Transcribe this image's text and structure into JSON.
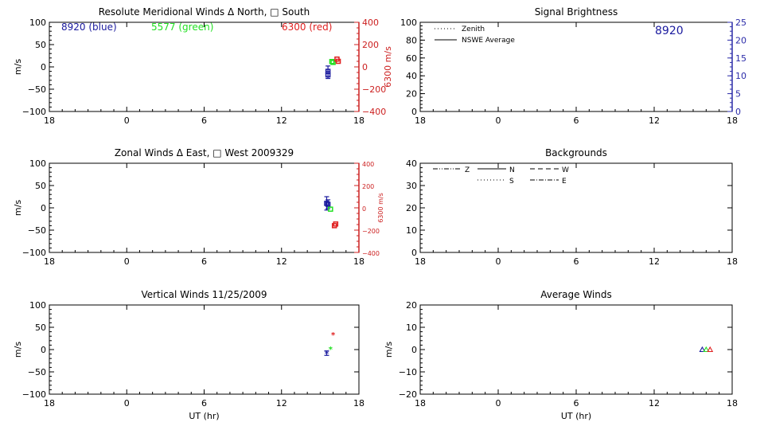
{
  "chart_data": [
    {
      "type": "scatter",
      "title": "Resolute Meridional Winds Δ North, □ South",
      "xlabel": "",
      "ylabel": "m/s",
      "y2label": "6300 m/s",
      "xlim": [
        18,
        42
      ],
      "xticks": [
        18,
        24,
        30,
        36,
        42
      ],
      "xtick_labels": [
        "18",
        "0",
        "6",
        "12",
        "18"
      ],
      "ylim": [
        -100,
        100
      ],
      "yticks": [
        -100,
        -50,
        0,
        50,
        100
      ],
      "ytick_labels": [
        "−100",
        "−50",
        "0",
        "50",
        "100"
      ],
      "y2lim": [
        -400,
        400
      ],
      "y2ticks": [
        -400,
        -200,
        0,
        200,
        400
      ],
      "y2tick_labels": [
        "−400",
        "−200",
        "0",
        "200",
        "400"
      ],
      "labels": [
        {
          "text": "8920 (blue)",
          "color": "#1a1a9e"
        },
        {
          "text": "5577 (green)",
          "color": "#22e022"
        },
        {
          "text": "6300 (red)",
          "color": "#e02020"
        }
      ],
      "series": [
        {
          "name": "8920",
          "color": "#1a1a9e",
          "axis": "left",
          "marker": "square",
          "x": [
            39.6,
            39.6
          ],
          "y": [
            -10,
            -18
          ],
          "err": [
            12,
            8
          ]
        },
        {
          "name": "5577",
          "color": "#22e022",
          "axis": "left",
          "marker": "square",
          "x": [
            39.9,
            40.0
          ],
          "y": [
            12,
            10
          ],
          "err": [
            0,
            0
          ]
        },
        {
          "name": "6300",
          "color": "#e02020",
          "axis": "right",
          "marker": "square",
          "x": [
            40.3,
            40.4
          ],
          "y": [
            70,
            50
          ],
          "err": [
            0,
            0
          ]
        }
      ]
    },
    {
      "type": "line",
      "title": "Signal Brightness",
      "xlim": [
        18,
        42
      ],
      "xticks": [
        18,
        24,
        30,
        36,
        42
      ],
      "xtick_labels": [
        "18",
        "0",
        "6",
        "12",
        "18"
      ],
      "ylim": [
        0,
        100
      ],
      "yticks": [
        0,
        20,
        40,
        60,
        80,
        100
      ],
      "ytick_labels": [
        "0",
        "20",
        "40",
        "60",
        "80",
        "100"
      ],
      "y2lim": [
        0,
        25
      ],
      "y2ticks": [
        0,
        5,
        10,
        15,
        20,
        25
      ],
      "y2tick_labels": [
        "0",
        "5",
        "10",
        "15",
        "20",
        "25"
      ],
      "legend": [
        {
          "label": "Zenith",
          "dash": "1,3"
        },
        {
          "label": "NSWE Average",
          "dash": ""
        }
      ],
      "annotation": {
        "text": "8920",
        "color": "#1a1a9e"
      },
      "series": []
    },
    {
      "type": "scatter",
      "title": "Zonal Winds Δ East, □ West 2009329",
      "ylabel": "m/s",
      "y2label": "6300 m/s",
      "xlim": [
        18,
        42
      ],
      "xticks": [
        18,
        24,
        30,
        36,
        42
      ],
      "xtick_labels": [
        "18",
        "0",
        "6",
        "12",
        "18"
      ],
      "ylim": [
        -100,
        100
      ],
      "yticks": [
        -100,
        -50,
        0,
        50,
        100
      ],
      "ytick_labels": [
        "−100",
        "−50",
        "0",
        "50",
        "100"
      ],
      "y2lim": [
        -400,
        400
      ],
      "y2ticks": [
        -400,
        -200,
        0,
        200,
        400
      ],
      "y2tick_labels": [
        "−400",
        "−200",
        "0",
        "200",
        "400"
      ],
      "series": [
        {
          "name": "8920",
          "color": "#1a1a9e",
          "axis": "left",
          "marker": "square",
          "x": [
            39.5,
            39.6
          ],
          "y": [
            10,
            8
          ],
          "err": [
            15,
            10
          ]
        },
        {
          "name": "5577",
          "color": "#22e022",
          "axis": "left",
          "marker": "square",
          "x": [
            39.8
          ],
          "y": [
            -3
          ],
          "err": [
            0
          ]
        },
        {
          "name": "6300",
          "color": "#e02020",
          "axis": "right",
          "marker": "square",
          "x": [
            40.1,
            40.2
          ],
          "y": [
            -160,
            -145
          ],
          "err": [
            0,
            0
          ]
        }
      ]
    },
    {
      "type": "line",
      "title": "Backgrounds",
      "xlim": [
        18,
        42
      ],
      "xticks": [
        18,
        24,
        30,
        36,
        42
      ],
      "xtick_labels": [
        "18",
        "0",
        "6",
        "12",
        "18"
      ],
      "ylim": [
        0,
        40
      ],
      "yticks": [
        0,
        10,
        20,
        30,
        40
      ],
      "ytick_labels": [
        "0",
        "10",
        "20",
        "30",
        "40"
      ],
      "legend": [
        {
          "label": "Z",
          "dash": "6,2,1,2,1,2"
        },
        {
          "label": "N",
          "dash": ""
        },
        {
          "label": "W",
          "dash": "6,4"
        },
        {
          "label": "S",
          "dash": "1,3"
        },
        {
          "label": "E",
          "dash": "6,2,1,2"
        }
      ],
      "series": []
    },
    {
      "type": "scatter",
      "title": "Vertical Winds 11/25/2009",
      "xlabel": "UT (hr)",
      "ylabel": "m/s",
      "xlim": [
        18,
        42
      ],
      "xticks": [
        18,
        24,
        30,
        36,
        42
      ],
      "xtick_labels": [
        "18",
        "0",
        "6",
        "12",
        "18"
      ],
      "ylim": [
        -100,
        100
      ],
      "yticks": [
        -100,
        -50,
        0,
        50,
        100
      ],
      "ytick_labels": [
        "−100",
        "−50",
        "0",
        "50",
        "100"
      ],
      "series": [
        {
          "name": "8920",
          "color": "#1a1a9e",
          "axis": "left",
          "marker": "star",
          "x": [
            39.5
          ],
          "y": [
            -8
          ],
          "err": [
            5
          ]
        },
        {
          "name": "5577",
          "color": "#22e022",
          "axis": "left",
          "marker": "star",
          "x": [
            39.8
          ],
          "y": [
            2
          ],
          "err": [
            0
          ]
        },
        {
          "name": "6300",
          "color": "#e02020",
          "axis": "left",
          "marker": "star",
          "x": [
            40.0
          ],
          "y": [
            34
          ],
          "err": [
            0
          ]
        }
      ]
    },
    {
      "type": "scatter",
      "title": "Average Winds",
      "xlabel": "UT (hr)",
      "ylabel": "m/s",
      "xlim": [
        18,
        42
      ],
      "xticks": [
        18,
        24,
        30,
        36,
        42
      ],
      "xtick_labels": [
        "18",
        "0",
        "6",
        "12",
        "18"
      ],
      "ylim": [
        -20,
        20
      ],
      "yticks": [
        -20,
        -10,
        0,
        10,
        20
      ],
      "ytick_labels": [
        "−20",
        "−10",
        "0",
        "10",
        "20"
      ],
      "series": [
        {
          "name": "8920",
          "color": "#1a1a9e",
          "axis": "left",
          "marker": "triangle",
          "x": [
            39.7
          ],
          "y": [
            0
          ],
          "err": [
            0
          ]
        },
        {
          "name": "5577",
          "color": "#22e022",
          "axis": "left",
          "marker": "triangle",
          "x": [
            40.0
          ],
          "y": [
            0
          ],
          "err": [
            0
          ]
        },
        {
          "name": "6300",
          "color": "#e02020",
          "axis": "left",
          "marker": "triangle",
          "x": [
            40.3
          ],
          "y": [
            0
          ],
          "err": [
            0
          ]
        }
      ]
    }
  ]
}
